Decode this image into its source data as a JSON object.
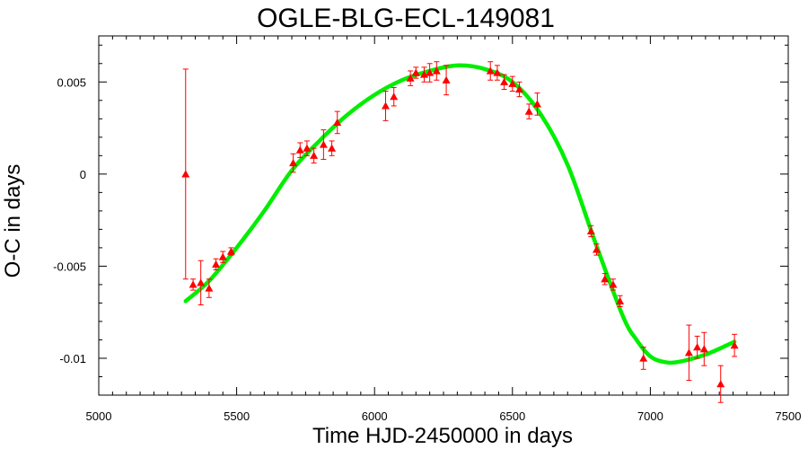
{
  "chart_data": {
    "type": "scatter",
    "title": "OGLE-BLG-ECL-149081",
    "xlabel": "Time HJD-2450000 in days",
    "ylabel": "O-C in days",
    "xlim": [
      5000,
      7500
    ],
    "ylim": [
      -0.012,
      0.0075
    ],
    "xticks": [
      5000,
      5500,
      6000,
      6500,
      7000,
      7500
    ],
    "xtick_labels": [
      "5000",
      "5500",
      "6000",
      "6500",
      "7000",
      "7500"
    ],
    "yticks": [
      0.005,
      0,
      -0.005,
      -0.01
    ],
    "ytick_labels": [
      "0.005",
      "0",
      "-0.005",
      "-0.01"
    ],
    "grid": false,
    "series": [
      {
        "kind": "observed",
        "marker": "triangle",
        "color": "#ff0000",
        "points": [
          {
            "x": 5315,
            "y": 0.0,
            "err": 0.0057
          },
          {
            "x": 5342,
            "y": -0.006,
            "err": 0.0003
          },
          {
            "x": 5370,
            "y": -0.0059,
            "err": 0.0012
          },
          {
            "x": 5400,
            "y": -0.0062,
            "err": 0.0005
          },
          {
            "x": 5425,
            "y": -0.0049,
            "err": 0.0003
          },
          {
            "x": 5450,
            "y": -0.0045,
            "err": 0.0003
          },
          {
            "x": 5480,
            "y": -0.0042,
            "err": 0.0002
          },
          {
            "x": 5705,
            "y": 0.0006,
            "err": 0.0005
          },
          {
            "x": 5730,
            "y": 0.0013,
            "err": 0.0004
          },
          {
            "x": 5755,
            "y": 0.0014,
            "err": 0.0004
          },
          {
            "x": 5780,
            "y": 0.001,
            "err": 0.0004
          },
          {
            "x": 5815,
            "y": 0.0016,
            "err": 0.0008
          },
          {
            "x": 5845,
            "y": 0.0014,
            "err": 0.0004
          },
          {
            "x": 5865,
            "y": 0.0028,
            "err": 0.0006
          },
          {
            "x": 6040,
            "y": 0.0037,
            "err": 0.0008
          },
          {
            "x": 6070,
            "y": 0.0042,
            "err": 0.0005
          },
          {
            "x": 6130,
            "y": 0.0052,
            "err": 0.0004
          },
          {
            "x": 6150,
            "y": 0.0055,
            "err": 0.0003
          },
          {
            "x": 6180,
            "y": 0.0054,
            "err": 0.0004
          },
          {
            "x": 6200,
            "y": 0.0055,
            "err": 0.0005
          },
          {
            "x": 6225,
            "y": 0.0056,
            "err": 0.0005
          },
          {
            "x": 6260,
            "y": 0.0051,
            "err": 0.0008
          },
          {
            "x": 6420,
            "y": 0.0056,
            "err": 0.0005
          },
          {
            "x": 6445,
            "y": 0.0055,
            "err": 0.0004
          },
          {
            "x": 6470,
            "y": 0.005,
            "err": 0.0004
          },
          {
            "x": 6500,
            "y": 0.0049,
            "err": 0.0004
          },
          {
            "x": 6525,
            "y": 0.0046,
            "err": 0.0004
          },
          {
            "x": 6560,
            "y": 0.0034,
            "err": 0.0004
          },
          {
            "x": 6590,
            "y": 0.0038,
            "err": 0.0006
          },
          {
            "x": 6785,
            "y": -0.0031,
            "err": 0.0003
          },
          {
            "x": 6805,
            "y": -0.0041,
            "err": 0.0003
          },
          {
            "x": 6835,
            "y": -0.0057,
            "err": 0.0003
          },
          {
            "x": 6865,
            "y": -0.006,
            "err": 0.0003
          },
          {
            "x": 6890,
            "y": -0.0069,
            "err": 0.0003
          },
          {
            "x": 6975,
            "y": -0.01,
            "err": 0.0006
          },
          {
            "x": 7140,
            "y": -0.0097,
            "err": 0.0015
          },
          {
            "x": 7170,
            "y": -0.0094,
            "err": 0.0006
          },
          {
            "x": 7195,
            "y": -0.0095,
            "err": 0.0009
          },
          {
            "x": 7255,
            "y": -0.0114,
            "err": 0.001
          },
          {
            "x": 7305,
            "y": -0.0093,
            "err": 0.0006
          }
        ]
      },
      {
        "kind": "fit",
        "color": "#00ee00",
        "points": [
          {
            "x": 5315,
            "y": -0.0069
          },
          {
            "x": 5400,
            "y": -0.0058
          },
          {
            "x": 5500,
            "y": -0.004
          },
          {
            "x": 5600,
            "y": -0.002
          },
          {
            "x": 5700,
            "y": 0.0002
          },
          {
            "x": 5800,
            "y": 0.0018
          },
          {
            "x": 5900,
            "y": 0.0032
          },
          {
            "x": 6000,
            "y": 0.0043
          },
          {
            "x": 6100,
            "y": 0.0051
          },
          {
            "x": 6200,
            "y": 0.0056
          },
          {
            "x": 6300,
            "y": 0.0059
          },
          {
            "x": 6400,
            "y": 0.0057
          },
          {
            "x": 6500,
            "y": 0.005
          },
          {
            "x": 6600,
            "y": 0.0033
          },
          {
            "x": 6700,
            "y": 0.0005
          },
          {
            "x": 6800,
            "y": -0.0037
          },
          {
            "x": 6900,
            "y": -0.0077
          },
          {
            "x": 6950,
            "y": -0.009
          },
          {
            "x": 7000,
            "y": -0.0099
          },
          {
            "x": 7050,
            "y": -0.0102
          },
          {
            "x": 7100,
            "y": -0.0102
          },
          {
            "x": 7200,
            "y": -0.0098
          },
          {
            "x": 7305,
            "y": -0.0091
          }
        ]
      }
    ]
  }
}
